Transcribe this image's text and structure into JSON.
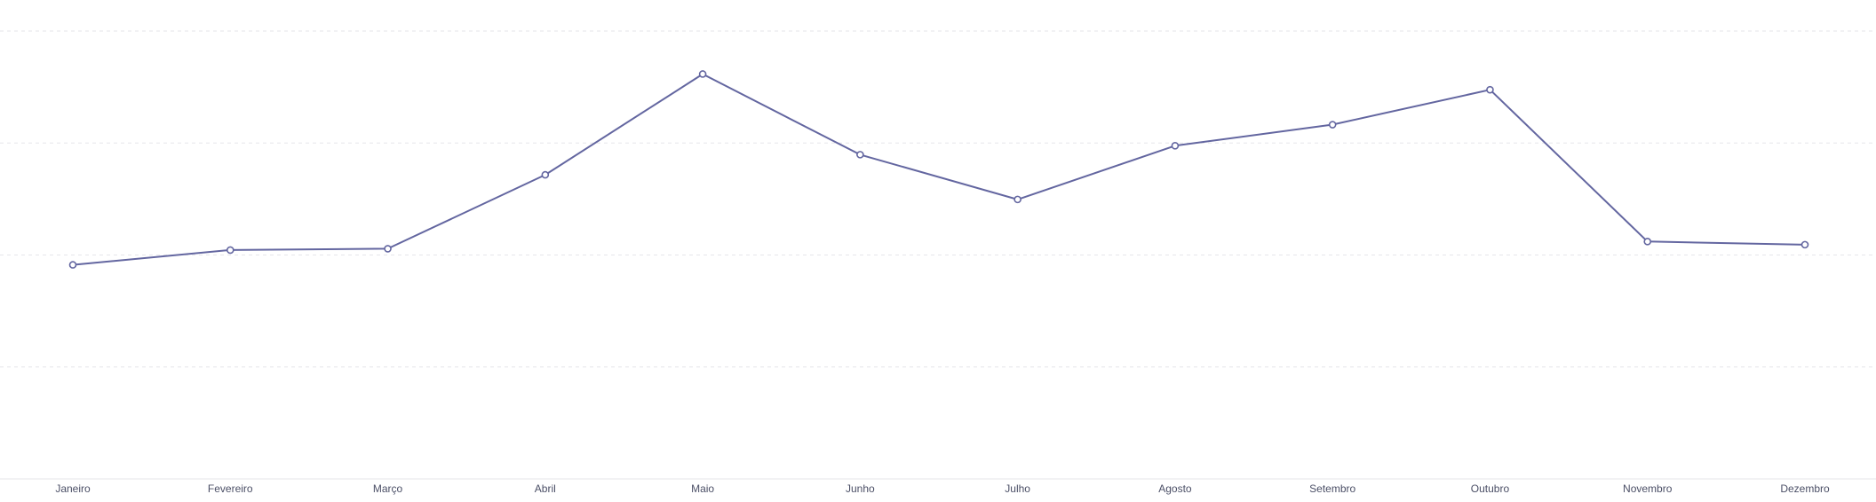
{
  "chart_data": {
    "type": "line",
    "categories": [
      "Janeiro",
      "Fevereiro",
      "Março",
      "Abril",
      "Maio",
      "Junho",
      "Julho",
      "Agosto",
      "Setembro",
      "Outubro",
      "Novembro",
      "Dezembro"
    ],
    "series": [
      {
        "values": [
          47.8,
          51.1,
          51.4,
          67.9,
          90.4,
          72.4,
          62.4,
          74.4,
          79.1,
          86.9,
          53.0,
          52.3
        ]
      }
    ],
    "title": "",
    "xlabel": "",
    "ylabel": "",
    "ylim": [
      0,
      100
    ],
    "grid": true,
    "legend": "none",
    "colors": {
      "line": "#6366a0",
      "grid": "#e6e6ea",
      "text": "#4b4f66"
    }
  }
}
